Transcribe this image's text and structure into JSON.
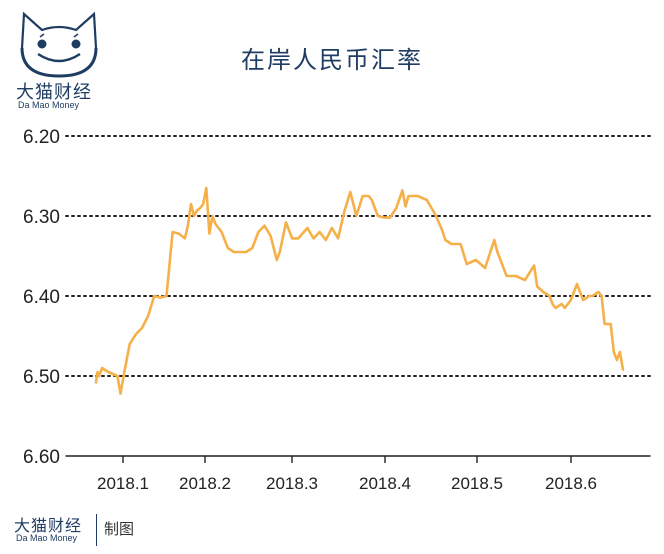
{
  "brand": {
    "name_cn": "大猫财经",
    "name_en": "Da Mao Money",
    "logo_icon": "cat-face-icon"
  },
  "footer": {
    "credit": "制图"
  },
  "colors": {
    "line": "#f5b04a",
    "brand": "#1f3d63",
    "grid": "#222222"
  },
  "chart_data": {
    "type": "line",
    "title": "在岸人民币汇率",
    "xlabel": "",
    "ylabel": "",
    "y_inverted": true,
    "ylim": [
      6.2,
      6.6
    ],
    "yticks": [
      6.2,
      6.3,
      6.4,
      6.5,
      6.6
    ],
    "ytick_labels": [
      "6.20",
      "6.30",
      "6.40",
      "6.50",
      "6.60"
    ],
    "grid": "horizontal dotted",
    "x_ticks": [
      "2018.1",
      "2018.2",
      "2018.3",
      "2018.4",
      "2018.5",
      "2018.6"
    ],
    "series": [
      {
        "x": [
          0,
          0.5,
          1,
          2,
          4,
          7,
          8,
          9,
          11,
          13,
          15,
          17,
          19,
          21,
          23,
          25,
          27,
          29,
          30,
          31,
          32,
          33,
          34,
          35,
          36,
          37,
          38,
          39,
          41,
          43,
          45,
          46,
          48,
          49,
          51,
          53,
          55,
          57,
          59,
          60,
          62,
          64,
          66,
          69,
          71,
          73,
          75,
          77,
          79,
          81,
          83,
          85,
          87,
          89,
          90,
          92,
          94,
          96,
          98,
          100,
          101,
          102,
          103,
          105,
          108,
          111,
          113,
          114,
          116,
          118,
          119,
          121,
          124,
          127,
          130,
          131,
          134,
          137,
          140,
          143,
          144,
          146,
          148,
          149,
          150,
          152,
          153,
          155,
          157,
          159,
          161,
          162,
          164,
          165,
          166,
          167,
          168,
          169,
          170,
          171,
          172
        ],
        "y": [
          6.508,
          6.495,
          6.5,
          6.49,
          6.495,
          6.5,
          6.522,
          6.5,
          6.46,
          6.448,
          6.44,
          6.425,
          6.4,
          6.402,
          6.4,
          6.32,
          6.322,
          6.328,
          6.312,
          6.285,
          6.3,
          6.293,
          6.29,
          6.285,
          6.265,
          6.322,
          6.3,
          6.31,
          6.32,
          6.34,
          6.345,
          6.345,
          6.345,
          6.345,
          6.34,
          6.32,
          6.312,
          6.325,
          6.355,
          6.345,
          6.308,
          6.328,
          6.328,
          6.315,
          6.328,
          6.32,
          6.33,
          6.315,
          6.328,
          6.295,
          6.27,
          6.3,
          6.275,
          6.275,
          6.28,
          6.3,
          6.302,
          6.302,
          6.29,
          6.268,
          6.288,
          6.275,
          6.275,
          6.275,
          6.28,
          6.3,
          6.318,
          6.33,
          6.335,
          6.335,
          6.335,
          6.36,
          6.355,
          6.365,
          6.33,
          6.345,
          6.375,
          6.375,
          6.38,
          6.362,
          6.388,
          6.395,
          6.4,
          6.41,
          6.415,
          6.41,
          6.415,
          6.405,
          6.385,
          6.405,
          6.4,
          6.4,
          6.395,
          6.4,
          6.435,
          6.435,
          6.435,
          6.47,
          6.48,
          6.47,
          6.492
        ]
      }
    ]
  }
}
